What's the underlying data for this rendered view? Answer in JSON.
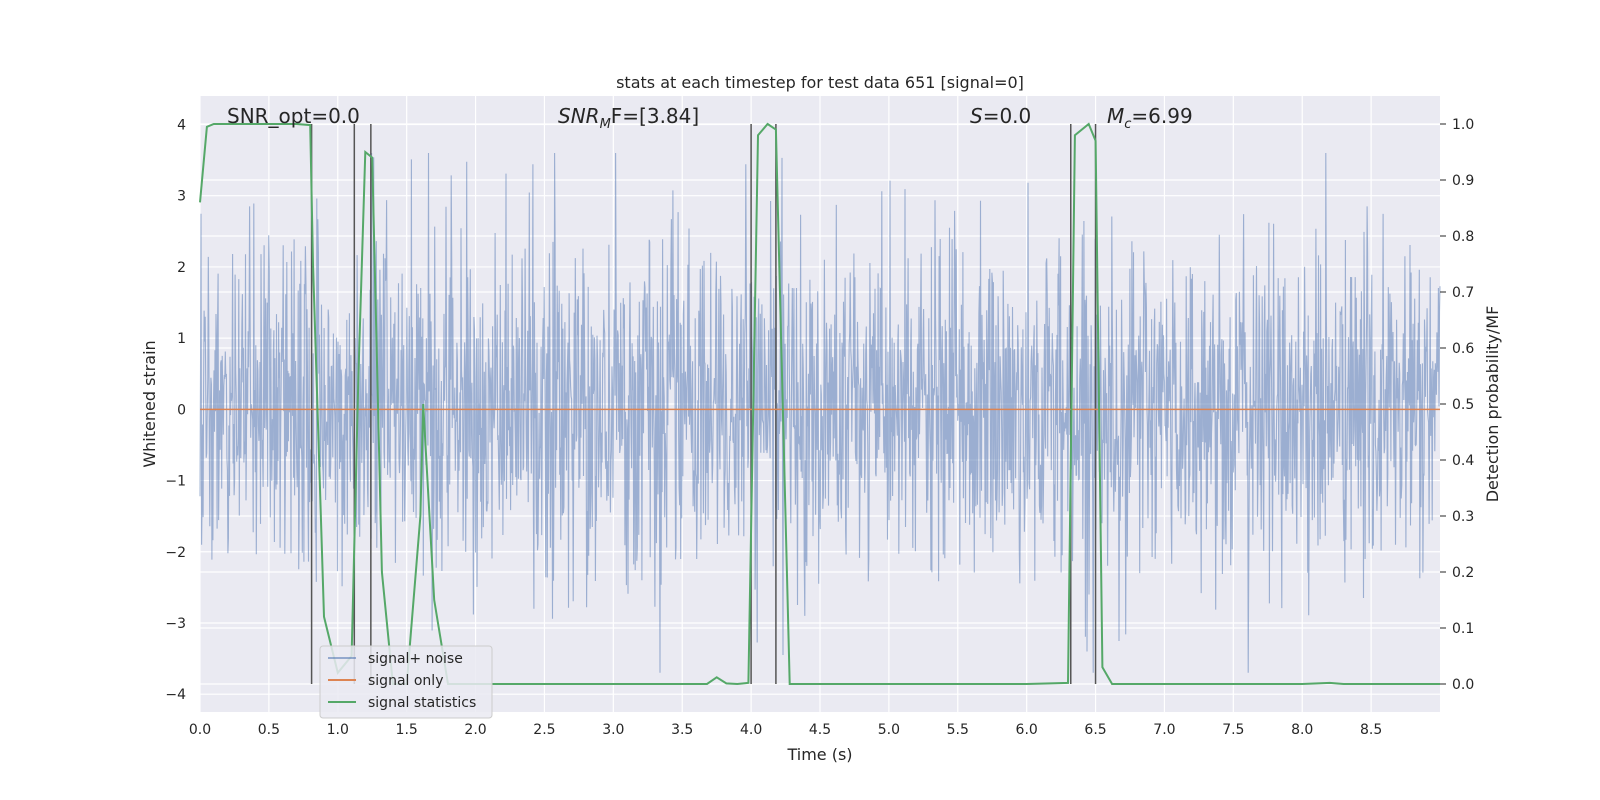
{
  "chart_data": {
    "type": "line",
    "title": "stats at each timestep for test data 651 [signal=0]",
    "xlabel": "Time (s)",
    "ylabel_left": "Whitened strain",
    "ylabel_right": "Detection probability/MF",
    "xlim": [
      0.0,
      9.0
    ],
    "ylim_left": [
      -4.25,
      4.4
    ],
    "ylim_right": [
      -0.05,
      1.05
    ],
    "x_ticks": [
      "0.0",
      "0.5",
      "1.0",
      "1.5",
      "2.0",
      "2.5",
      "3.0",
      "3.5",
      "4.0",
      "4.5",
      "5.0",
      "5.5",
      "6.0",
      "6.5",
      "7.0",
      "7.5",
      "8.0",
      "8.5"
    ],
    "y_ticks_left": [
      "4",
      "3",
      "2",
      "1",
      "0",
      "−1",
      "−2",
      "−3",
      "−4"
    ],
    "y_ticks_right": [
      "1.0",
      "0.9",
      "0.8",
      "0.7",
      "0.6",
      "0.5",
      "0.4",
      "0.3",
      "0.2",
      "0.1",
      "0.0"
    ],
    "grid": true,
    "legend_position": "lower-left",
    "annotations": [
      {
        "plain": "SNR_opt=0.0"
      },
      {
        "math": "SNR",
        "sub": "M",
        "rest": "F=[3.84]"
      },
      {
        "math": "S",
        "sub": "",
        "rest": "=0.0"
      },
      {
        "math": "M",
        "sub": "c",
        "rest": "=6.99"
      }
    ],
    "series": [
      {
        "name": "signal+ noise",
        "color": "#4c72b0",
        "alpha": 0.5,
        "axis": "left",
        "description_kind": "dense noise",
        "approx_range": [
          -3.7,
          3.6
        ]
      },
      {
        "name": "signal only",
        "color": "#dd8452",
        "axis": "left",
        "x": [
          0.0,
          9.0
        ],
        "y": [
          0.0,
          0.0
        ]
      },
      {
        "name": "signal statistics",
        "color": "#55a868",
        "axis": "right",
        "x": [
          0.0,
          0.05,
          0.1,
          0.2,
          0.3,
          0.5,
          0.7,
          0.8,
          0.82,
          0.9,
          1.0,
          1.1,
          1.15,
          1.2,
          1.25,
          1.32,
          1.4,
          1.5,
          1.6,
          1.62,
          1.7,
          1.8,
          2.0,
          3.0,
          3.5,
          3.68,
          3.75,
          3.82,
          3.9,
          3.98,
          4.05,
          4.12,
          4.18,
          4.28,
          4.4,
          5.0,
          6.0,
          6.3,
          6.35,
          6.45,
          6.5,
          6.55,
          6.62,
          7.0,
          8.0,
          8.2,
          8.3,
          9.0
        ],
        "y": [
          0.86,
          0.995,
          1.0,
          1.0,
          1.0,
          1.0,
          1.0,
          0.998,
          0.75,
          0.12,
          0.02,
          0.05,
          0.55,
          0.95,
          0.94,
          0.2,
          0.0,
          0.0,
          0.3,
          0.5,
          0.15,
          0.0,
          0.0,
          0.0,
          0.0,
          0.0,
          0.012,
          0.001,
          0.0,
          0.002,
          0.98,
          1.0,
          0.99,
          0.0,
          0.0,
          0.0,
          0.0,
          0.002,
          0.98,
          1.0,
          0.97,
          0.03,
          0.0,
          0.0,
          0.0,
          0.002,
          0.0,
          0.0
        ]
      },
      {
        "name": "markers",
        "color": "#555555",
        "kind": "vertical lines",
        "x": [
          0.81,
          1.12,
          1.24,
          4.0,
          4.18,
          6.32,
          6.5
        ]
      }
    ]
  }
}
